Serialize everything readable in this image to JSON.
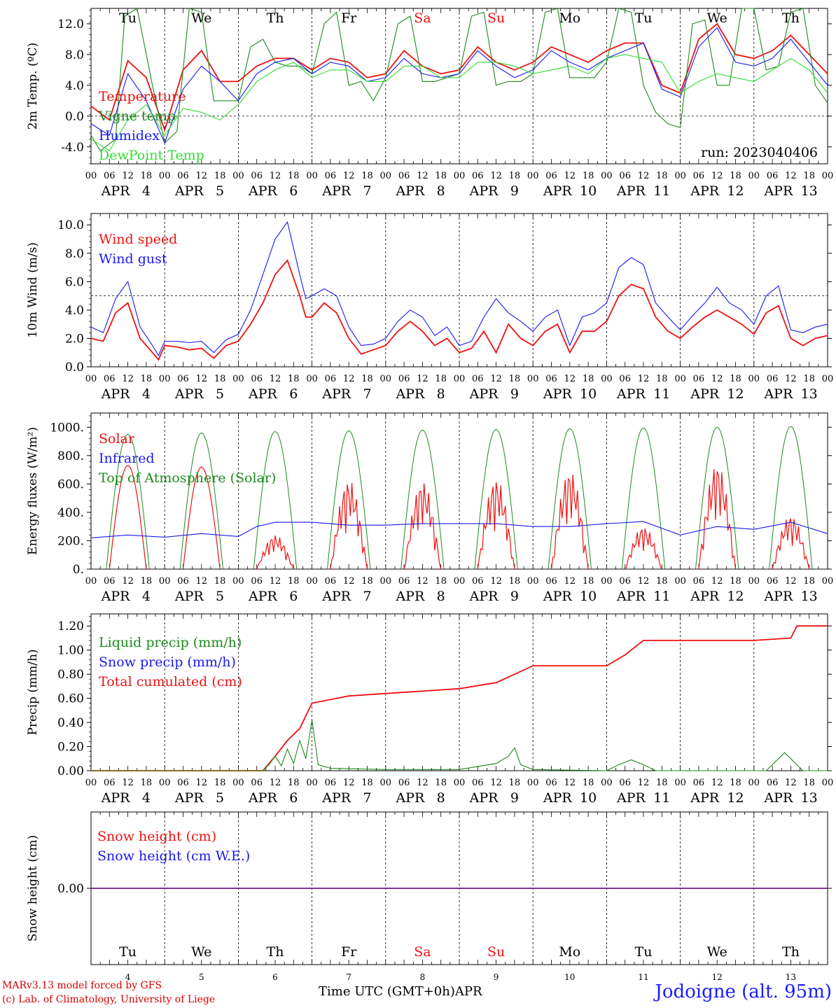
{
  "colors": {
    "temperature": "#ee1111",
    "vigne": "#1d8a1d",
    "humidex": "#1a1aee",
    "dewpoint": "#33dd33",
    "weekend": "#ee1111"
  },
  "day_names": [
    "Tu",
    "We",
    "Th",
    "Fr",
    "Sa",
    "Su",
    "Mo",
    "Tu",
    "We",
    "Th"
  ],
  "weekend_flags": [
    false,
    false,
    false,
    false,
    true,
    true,
    false,
    false,
    false,
    false
  ],
  "day_numbers": [
    "4",
    "5",
    "6",
    "7",
    "8",
    "9",
    "10",
    "11",
    "12",
    "13"
  ],
  "month": "APR",
  "hour_ticks": [
    "00",
    "06",
    "12",
    "18"
  ],
  "last_tick": "00",
  "run_label": "run: 2023040406",
  "footer": {
    "model": "MARv3.13 model forced by GFS",
    "lab": "(c) Lab. of Climatology, University of Liege",
    "time_label": "Time UTC (GMT+0h)",
    "month_label": "APR",
    "location": "Jodoigne (alt. 95m)"
  },
  "chart_data": [
    {
      "type": "line",
      "ylabel": "2m Temp. (ºC)",
      "ylim": [
        -6.2,
        14
      ],
      "yticks": [
        "12.0",
        "8.0",
        "4.0",
        "0.0",
        "-4.0"
      ],
      "yticks_values": [
        12,
        8,
        4,
        0,
        -4
      ],
      "ref_line": 0,
      "x_unit": "hours since APR 4 00 UTC",
      "legend": [
        "Temperature",
        "Vigne temp",
        "Humidex",
        "DewPoint Temp"
      ],
      "series": [
        {
          "name": "Temperature",
          "color": "temperature",
          "x": [
            0,
            6,
            12,
            18,
            24,
            30,
            36,
            42,
            48,
            54,
            60,
            66,
            72,
            78,
            84,
            90,
            96,
            102,
            108,
            114,
            120,
            126,
            132,
            138,
            144,
            150,
            156,
            162,
            168,
            174,
            180,
            186,
            192,
            198,
            204,
            210,
            216,
            222,
            228,
            234,
            240
          ],
          "y": [
            1.3,
            -0.5,
            7.2,
            5.0,
            -1.8,
            6.0,
            8.5,
            4.5,
            4.5,
            6.5,
            7.5,
            7.5,
            6.0,
            7.5,
            7.0,
            5.0,
            5.5,
            8.5,
            6.5,
            5.5,
            6.0,
            9.0,
            7.0,
            6.0,
            7.0,
            9.0,
            8.0,
            7.0,
            8.5,
            9.5,
            9.5,
            4.0,
            3.0,
            10.0,
            12.0,
            8.0,
            7.5,
            8.5,
            10.5,
            8.0,
            5.5
          ]
        },
        {
          "name": "Vigne temp",
          "color": "vigne",
          "x": [
            0,
            3,
            8,
            11,
            15,
            20,
            24,
            28,
            32,
            36,
            40,
            44,
            48,
            52,
            56,
            60,
            64,
            68,
            72,
            76,
            80,
            84,
            88,
            92,
            96,
            100,
            104,
            108,
            112,
            116,
            120,
            124,
            128,
            132,
            136,
            140,
            144,
            148,
            152,
            156,
            160,
            164,
            168,
            172,
            176,
            180,
            184,
            188,
            192,
            196,
            200,
            204,
            208,
            212,
            216,
            220,
            224,
            228,
            232,
            236,
            240
          ],
          "y": [
            -2.5,
            -4.5,
            -3.0,
            13.0,
            14.0,
            4.0,
            -3.5,
            -2.0,
            14.0,
            13.5,
            2.0,
            2.0,
            2.0,
            9.0,
            10.0,
            7.0,
            6.5,
            6.5,
            5.5,
            12.0,
            13.5,
            4.0,
            4.5,
            2.0,
            5.0,
            12.0,
            13.0,
            4.5,
            4.5,
            5.0,
            5.5,
            13.0,
            13.5,
            4.0,
            4.5,
            4.5,
            5.5,
            13.5,
            14.0,
            5.0,
            5.0,
            5.0,
            7.0,
            14.0,
            13.5,
            4.0,
            0.5,
            -1.0,
            -1.5,
            12.0,
            12.5,
            4.0,
            4.0,
            14.0,
            14.0,
            6.0,
            6.5,
            13.5,
            14.0,
            4.0,
            1.7
          ]
        },
        {
          "name": "Humidex",
          "color": "humidex",
          "x": [
            0,
            6,
            12,
            18,
            24,
            30,
            36,
            42,
            48,
            54,
            60,
            66,
            72,
            78,
            84,
            90,
            96,
            102,
            108,
            114,
            120,
            126,
            132,
            138,
            144,
            150,
            156,
            162,
            168,
            174,
            180,
            186,
            192,
            198,
            204,
            210,
            216,
            222,
            228,
            234,
            240
          ],
          "y": [
            -1.0,
            -2.5,
            5.5,
            2.0,
            -3.5,
            3.5,
            6.5,
            4.5,
            2.0,
            5.5,
            7.0,
            7.5,
            5.5,
            7.0,
            6.5,
            4.5,
            5.0,
            7.5,
            5.5,
            5.0,
            5.5,
            8.5,
            6.5,
            5.0,
            6.0,
            8.5,
            7.0,
            6.0,
            7.5,
            8.5,
            9.5,
            3.5,
            2.5,
            9.0,
            11.5,
            7.0,
            6.5,
            7.5,
            10.0,
            7.0,
            4.0
          ]
        },
        {
          "name": "DewPoint Temp",
          "color": "dewpoint",
          "x": [
            0,
            6,
            12,
            18,
            24,
            30,
            36,
            42,
            48,
            54,
            60,
            66,
            72,
            78,
            84,
            90,
            96,
            102,
            108,
            114,
            120,
            126,
            132,
            138,
            144,
            150,
            156,
            162,
            168,
            174,
            180,
            186,
            192,
            198,
            204,
            210,
            216,
            222,
            228,
            234,
            240
          ],
          "y": [
            -3.0,
            -4.5,
            -0.5,
            1.5,
            -2.5,
            1.0,
            0.5,
            -0.5,
            1.5,
            4.5,
            6.0,
            7.0,
            5.0,
            6.0,
            6.0,
            4.5,
            4.5,
            6.5,
            6.5,
            5.0,
            5.0,
            7.0,
            7.0,
            6.5,
            5.5,
            6.0,
            6.5,
            5.5,
            7.5,
            8.0,
            7.5,
            7.0,
            3.0,
            4.5,
            5.5,
            5.0,
            4.5,
            6.0,
            7.5,
            6.0,
            3.0
          ]
        }
      ]
    },
    {
      "type": "line",
      "ylabel": "10m Wind (m/s)",
      "ylim": [
        0,
        10.8
      ],
      "yticks": [
        "10.0",
        "8.0",
        "6.0",
        "4.0",
        "2.0",
        "0.0"
      ],
      "yticks_values": [
        10,
        8,
        6,
        4,
        2,
        0
      ],
      "ref_line": 5,
      "legend": [
        "Wind speed",
        "Wind gust"
      ],
      "series": [
        {
          "name": "Wind speed",
          "color": "temperature",
          "x": [
            0,
            4,
            8,
            12,
            16,
            20,
            22,
            24,
            28,
            32,
            36,
            40,
            44,
            48,
            52,
            56,
            60,
            64,
            68,
            70,
            72,
            76,
            80,
            84,
            88,
            92,
            96,
            100,
            104,
            108,
            112,
            116,
            120,
            124,
            128,
            132,
            136,
            140,
            144,
            148,
            152,
            156,
            160,
            164,
            168,
            172,
            176,
            180,
            184,
            188,
            192,
            196,
            200,
            204,
            208,
            212,
            216,
            220,
            224,
            228,
            232,
            236,
            240
          ],
          "y": [
            2.0,
            1.8,
            3.8,
            4.5,
            2.0,
            1.0,
            0.5,
            1.5,
            1.4,
            1.2,
            1.3,
            0.6,
            1.5,
            1.8,
            3.0,
            4.5,
            6.5,
            7.5,
            5.0,
            3.5,
            3.5,
            4.5,
            3.8,
            2.0,
            0.9,
            1.2,
            1.5,
            2.5,
            3.2,
            2.5,
            1.5,
            2.0,
            1.0,
            1.3,
            2.5,
            1.0,
            3.0,
            2.0,
            1.5,
            2.5,
            3.0,
            1.0,
            2.5,
            2.5,
            3.2,
            5.0,
            5.8,
            5.5,
            3.5,
            2.5,
            2.0,
            2.8,
            3.5,
            4.0,
            3.5,
            3.0,
            2.3,
            3.8,
            4.3,
            2.0,
            1.5,
            2.0,
            2.2
          ]
        },
        {
          "name": "Wind gust",
          "color": "humidex",
          "x": [
            0,
            4,
            8,
            12,
            16,
            20,
            22,
            24,
            28,
            32,
            36,
            40,
            44,
            48,
            52,
            56,
            60,
            64,
            68,
            70,
            72,
            76,
            80,
            84,
            88,
            92,
            96,
            100,
            104,
            108,
            112,
            116,
            120,
            124,
            128,
            132,
            136,
            140,
            144,
            148,
            152,
            156,
            160,
            164,
            168,
            172,
            176,
            180,
            184,
            188,
            192,
            196,
            200,
            204,
            208,
            212,
            216,
            220,
            224,
            228,
            232,
            236,
            240
          ],
          "y": [
            2.8,
            2.4,
            4.8,
            6.0,
            2.8,
            1.5,
            0.8,
            1.8,
            1.8,
            1.7,
            1.8,
            1.0,
            1.9,
            2.3,
            4.0,
            6.5,
            9.0,
            10.2,
            6.5,
            4.8,
            5.0,
            5.5,
            5.0,
            2.8,
            1.5,
            1.6,
            2.0,
            3.2,
            4.0,
            3.5,
            2.2,
            2.8,
            1.5,
            1.8,
            3.5,
            4.8,
            3.8,
            3.2,
            2.5,
            3.5,
            4.0,
            1.5,
            3.5,
            3.8,
            4.5,
            7.0,
            7.7,
            7.2,
            4.5,
            3.5,
            2.6,
            3.6,
            4.5,
            5.6,
            4.5,
            4.0,
            3.0,
            5.0,
            5.7,
            2.6,
            2.4,
            2.8,
            3.0
          ]
        }
      ]
    },
    {
      "type": "line",
      "ylabel": "Energy fluxes (W/m²)",
      "ylim": [
        0,
        1100
      ],
      "yticks": [
        "1000.",
        "800.",
        "600.",
        "400.",
        "200.",
        "0."
      ],
      "yticks_values": [
        1000,
        800,
        600,
        400,
        200,
        0
      ],
      "legend": [
        "Solar",
        "Infrared",
        "Top of Atmosphere (Solar)"
      ],
      "toa_peaks": [
        950,
        960,
        970,
        975,
        980,
        985,
        990,
        995,
        1000,
        1005
      ],
      "solar_peaks": [
        730,
        720,
        240,
        630,
        620,
        640,
        700,
        300,
        750,
        380
      ],
      "series_note": "Solar and TOA drawn per day between 05 and 19 UTC; Infrared as below",
      "series": [
        {
          "name": "Infrared",
          "color": "humidex",
          "x": [
            0,
            12,
            24,
            36,
            48,
            54,
            60,
            72,
            84,
            96,
            108,
            120,
            132,
            144,
            156,
            168,
            180,
            192,
            204,
            216,
            228,
            240
          ],
          "y": [
            220,
            240,
            225,
            250,
            230,
            300,
            330,
            330,
            310,
            310,
            320,
            320,
            320,
            300,
            300,
            320,
            335,
            240,
            300,
            280,
            330,
            250
          ]
        }
      ]
    },
    {
      "type": "line",
      "ylabel": "Precip (mm/h)",
      "ylim": [
        0,
        1.3
      ],
      "yticks": [
        "1.20",
        "1.00",
        "0.80",
        "0.60",
        "0.40",
        "0.20",
        "0.00"
      ],
      "yticks_values": [
        1.2,
        1.0,
        0.8,
        0.6,
        0.4,
        0.2,
        0.0
      ],
      "legend": [
        "Liquid precip (mm/h)",
        "Snow precip (mm/h)",
        "Total cumulated (cm)"
      ],
      "series": [
        {
          "name": "Total cumulated (cm)",
          "color": "temperature",
          "x": [
            0,
            56,
            60,
            64,
            68,
            72,
            76,
            80,
            84,
            96,
            108,
            120,
            132,
            138,
            144,
            156,
            168,
            174,
            180,
            186,
            192,
            204,
            216,
            228,
            230,
            240
          ],
          "y": [
            0,
            0,
            0.12,
            0.25,
            0.35,
            0.56,
            0.58,
            0.6,
            0.62,
            0.64,
            0.66,
            0.68,
            0.73,
            0.8,
            0.87,
            0.87,
            0.87,
            0.96,
            1.08,
            1.08,
            1.08,
            1.08,
            1.08,
            1.1,
            1.2,
            1.2
          ]
        },
        {
          "name": "Liquid precip (mm/h)",
          "color": "vigne",
          "x": [
            0,
            56,
            58,
            60,
            62,
            64,
            66,
            68,
            70,
            72,
            74,
            78,
            96,
            120,
            132,
            136,
            138,
            140,
            144,
            168,
            172,
            176,
            180,
            184,
            220,
            226,
            228,
            232,
            240
          ],
          "y": [
            0,
            0,
            0.05,
            0.12,
            0.04,
            0.18,
            0.06,
            0.25,
            0.1,
            0.42,
            0.05,
            0.02,
            0.01,
            0.01,
            0.06,
            0.12,
            0.19,
            0.05,
            0.01,
            0,
            0.05,
            0.09,
            0.05,
            0,
            0,
            0.15,
            0.1,
            0,
            0
          ]
        }
      ]
    },
    {
      "type": "line",
      "ylabel": "Snow height (cm)",
      "ylim": [
        -1,
        1
      ],
      "yticks": [
        "0.00"
      ],
      "yticks_values": [
        0
      ],
      "legend": [
        "Snow height (cm)",
        "Snow height (cm W.E.)"
      ],
      "series": [
        {
          "name": "Snow height (cm)",
          "color": "temperature",
          "x": [
            0,
            240
          ],
          "y": [
            0,
            0
          ]
        },
        {
          "name": "Snow height (cm W.E.)",
          "color": "humidex",
          "x": [
            0,
            240
          ],
          "y": [
            0,
            0
          ]
        }
      ]
    }
  ]
}
